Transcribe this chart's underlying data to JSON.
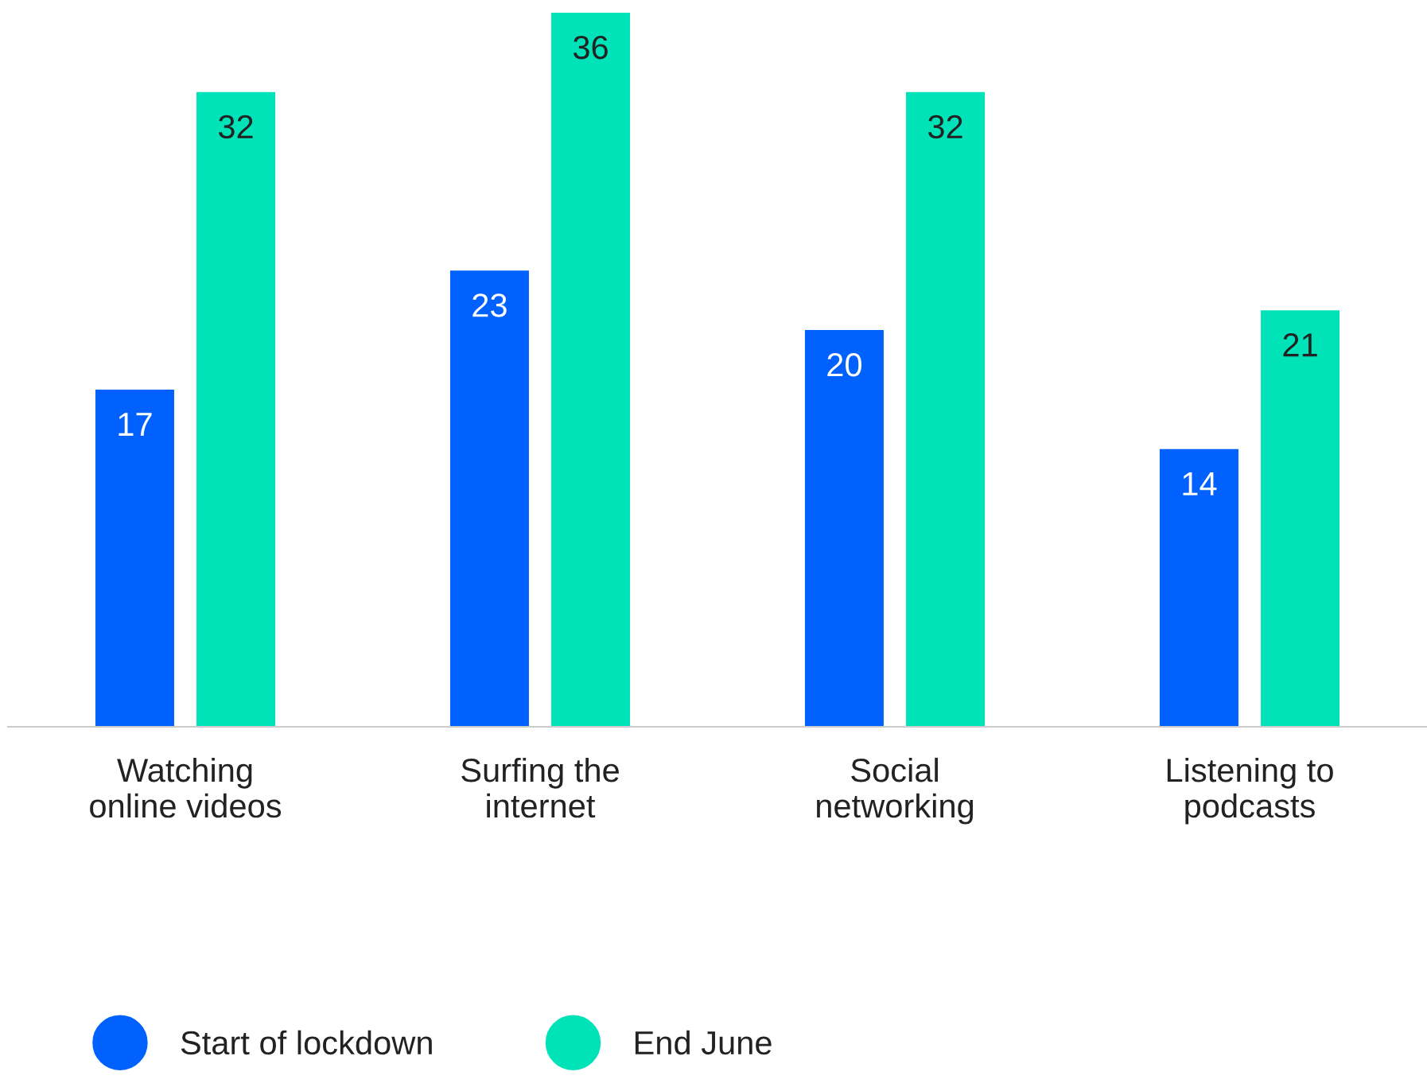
{
  "chart_data": {
    "type": "bar",
    "categories": [
      "Watching\nonline videos",
      "Surfing the\ninternet",
      "Social\nnetworking",
      "Listening to\npodcasts"
    ],
    "series": [
      {
        "name": "Start of lockdown",
        "color": "#0061fe",
        "values": [
          17,
          23,
          20,
          14
        ]
      },
      {
        "name": "End June",
        "color": "#00e3b9",
        "values": [
          32,
          36,
          32,
          21
        ]
      }
    ],
    "data_labels": true,
    "legend": "bottom",
    "grid": false
  }
}
